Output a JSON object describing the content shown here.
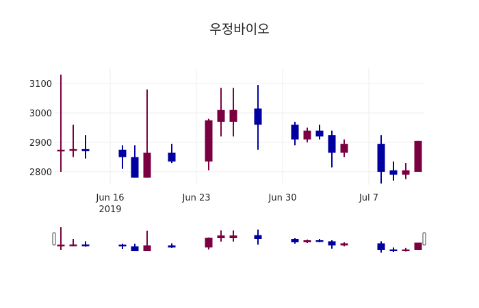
{
  "title": "우정바이오",
  "colors": {
    "increasing": "#7b0041",
    "decreasing": "#0000a0",
    "grid": "#eeeeee"
  },
  "chart_data": {
    "type": "candlestick",
    "title": "우정바이오",
    "xlabel": "",
    "ylabel": "",
    "ylim": [
      2760,
      3130
    ],
    "yticks": [
      2800,
      2900,
      3000,
      3100
    ],
    "xticks": [
      {
        "date": "2019-06-16",
        "label": "Jun 16",
        "sublabel": "2019"
      },
      {
        "date": "2019-06-23",
        "label": "Jun 23"
      },
      {
        "date": "2019-06-30",
        "label": "Jun 30"
      },
      {
        "date": "2019-07-07",
        "label": "Jul 7"
      }
    ],
    "grid": true,
    "rangeslider": true,
    "data": [
      {
        "date": "2019-06-12",
        "open": 2870,
        "high": 3130,
        "low": 2800,
        "close": 2875
      },
      {
        "date": "2019-06-13",
        "open": 2873,
        "high": 2960,
        "low": 2850,
        "close": 2877
      },
      {
        "date": "2019-06-14",
        "open": 2877,
        "high": 2925,
        "low": 2845,
        "close": 2870
      },
      {
        "date": "2019-06-17",
        "open": 2875,
        "high": 2890,
        "low": 2810,
        "close": 2850
      },
      {
        "date": "2019-06-18",
        "open": 2850,
        "high": 2890,
        "low": 2780,
        "close": 2780
      },
      {
        "date": "2019-06-19",
        "open": 2780,
        "high": 3080,
        "low": 2780,
        "close": 2865
      },
      {
        "date": "2019-06-21",
        "open": 2865,
        "high": 2895,
        "low": 2830,
        "close": 2835
      },
      {
        "date": "2019-06-24",
        "open": 2835,
        "high": 2980,
        "low": 2805,
        "close": 2975
      },
      {
        "date": "2019-06-25",
        "open": 2970,
        "high": 3085,
        "low": 2920,
        "close": 3010
      },
      {
        "date": "2019-06-26",
        "open": 2970,
        "high": 3085,
        "low": 2920,
        "close": 3010
      },
      {
        "date": "2019-06-28",
        "open": 3015,
        "high": 3095,
        "low": 2875,
        "close": 2960
      },
      {
        "date": "2019-07-01",
        "open": 2960,
        "high": 2970,
        "low": 2890,
        "close": 2910
      },
      {
        "date": "2019-07-02",
        "open": 2910,
        "high": 2950,
        "low": 2900,
        "close": 2940
      },
      {
        "date": "2019-07-03",
        "open": 2940,
        "high": 2960,
        "low": 2910,
        "close": 2920
      },
      {
        "date": "2019-07-04",
        "open": 2925,
        "high": 2940,
        "low": 2815,
        "close": 2865
      },
      {
        "date": "2019-07-05",
        "open": 2865,
        "high": 2910,
        "low": 2850,
        "close": 2895
      },
      {
        "date": "2019-07-08",
        "open": 2895,
        "high": 2925,
        "low": 2760,
        "close": 2800
      },
      {
        "date": "2019-07-09",
        "open": 2805,
        "high": 2835,
        "low": 2770,
        "close": 2790
      },
      {
        "date": "2019-07-10",
        "open": 2790,
        "high": 2830,
        "low": 2775,
        "close": 2805
      },
      {
        "date": "2019-07-11",
        "open": 2800,
        "high": 2905,
        "low": 2800,
        "close": 2905
      }
    ]
  }
}
